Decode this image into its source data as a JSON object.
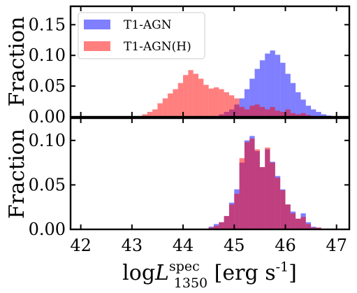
{
  "chart_data": [
    {
      "type": "bar",
      "subtype": "histogram-step-filled",
      "ylabel": "Fraction",
      "xlim": [
        41.8,
        47.25
      ],
      "ylim": [
        0,
        0.18
      ],
      "yticks": [
        0.0,
        0.05,
        0.1,
        0.15
      ],
      "ytick_labels": [
        "0.00",
        "0.05",
        "0.10",
        "0.15"
      ],
      "xticks": [
        42,
        43,
        44,
        45,
        46,
        47
      ],
      "xtick_labels_visible": false,
      "legend": {
        "position": "top-left"
      },
      "bin_width": 0.1,
      "series": [
        {
          "name": "T1-AGN",
          "color": "#0000ff",
          "alpha": 0.5,
          "bin_starts": [
            44.7,
            44.8,
            44.9,
            45.0,
            45.1,
            45.2,
            45.3,
            45.4,
            45.5,
            45.6,
            45.7,
            45.8,
            45.9,
            46.0,
            46.1,
            46.2,
            46.3,
            46.4,
            46.5,
            46.6,
            46.7,
            46.8
          ],
          "values": [
            0.004,
            0.008,
            0.012,
            0.02,
            0.03,
            0.045,
            0.062,
            0.078,
            0.092,
            0.103,
            0.108,
            0.101,
            0.088,
            0.07,
            0.055,
            0.04,
            0.028,
            0.018,
            0.012,
            0.008,
            0.004,
            0.002
          ]
        },
        {
          "name": "T1-AGN(H)",
          "color": "#ff0000",
          "alpha": 0.5,
          "bin_starts": [
            43.2,
            43.3,
            43.4,
            43.5,
            43.6,
            43.7,
            43.8,
            43.9,
            44.0,
            44.1,
            44.2,
            44.3,
            44.4,
            44.5,
            44.6,
            44.7,
            44.8,
            44.9,
            45.0,
            45.1,
            45.2,
            45.3,
            45.4,
            45.5,
            45.6,
            45.7,
            45.8,
            45.9,
            46.0,
            46.1,
            46.2,
            46.3,
            46.4
          ],
          "values": [
            0.004,
            0.008,
            0.012,
            0.022,
            0.03,
            0.038,
            0.045,
            0.055,
            0.068,
            0.076,
            0.07,
            0.062,
            0.052,
            0.046,
            0.048,
            0.045,
            0.04,
            0.035,
            0.03,
            0.016,
            0.012,
            0.018,
            0.02,
            0.016,
            0.012,
            0.016,
            0.01,
            0.008,
            0.012,
            0.006,
            0.004,
            0.006,
            0.003
          ]
        }
      ]
    },
    {
      "type": "bar",
      "subtype": "histogram-step-filled",
      "xlabel": "logL^{spec}_{1350} [erg s^{-1}]",
      "ylabel": "Fraction",
      "xlim": [
        41.8,
        47.25
      ],
      "ylim": [
        0,
        0.125
      ],
      "yticks": [
        0.0,
        0.05,
        0.1
      ],
      "ytick_labels": [
        "0.00",
        "0.05",
        "0.10"
      ],
      "xticks": [
        42,
        43,
        44,
        45,
        46,
        47
      ],
      "xtick_labels": [
        "42",
        "43",
        "44",
        "45",
        "46",
        "47"
      ],
      "bin_width": 0.1,
      "series": [
        {
          "color": "#0000ff",
          "alpha": 0.5,
          "bin_starts": [
            44.5,
            44.6,
            44.7,
            44.8,
            44.9,
            45.0,
            45.1,
            45.2,
            45.3,
            45.4,
            45.5,
            45.6,
            45.7,
            45.8,
            45.9,
            46.0,
            46.1,
            46.2,
            46.3,
            46.4,
            46.5,
            46.6
          ],
          "values": [
            0.003,
            0.006,
            0.008,
            0.015,
            0.03,
            0.045,
            0.075,
            0.1,
            0.105,
            0.088,
            0.07,
            0.09,
            0.076,
            0.06,
            0.045,
            0.028,
            0.02,
            0.012,
            0.018,
            0.008,
            0.003,
            0.002
          ]
        },
        {
          "color": "#ff0000",
          "alpha": 0.5,
          "bin_starts": [
            44.5,
            44.6,
            44.7,
            44.8,
            44.9,
            45.0,
            45.1,
            45.2,
            45.3,
            45.4,
            45.5,
            45.6,
            45.7,
            45.8,
            45.9,
            46.0,
            46.1,
            46.2,
            46.3,
            46.4,
            46.5,
            46.6
          ],
          "values": [
            0.002,
            0.004,
            0.008,
            0.015,
            0.028,
            0.04,
            0.08,
            0.098,
            0.102,
            0.09,
            0.07,
            0.092,
            0.075,
            0.058,
            0.044,
            0.028,
            0.018,
            0.012,
            0.014,
            0.006,
            0.002,
            0.002
          ]
        }
      ]
    }
  ]
}
